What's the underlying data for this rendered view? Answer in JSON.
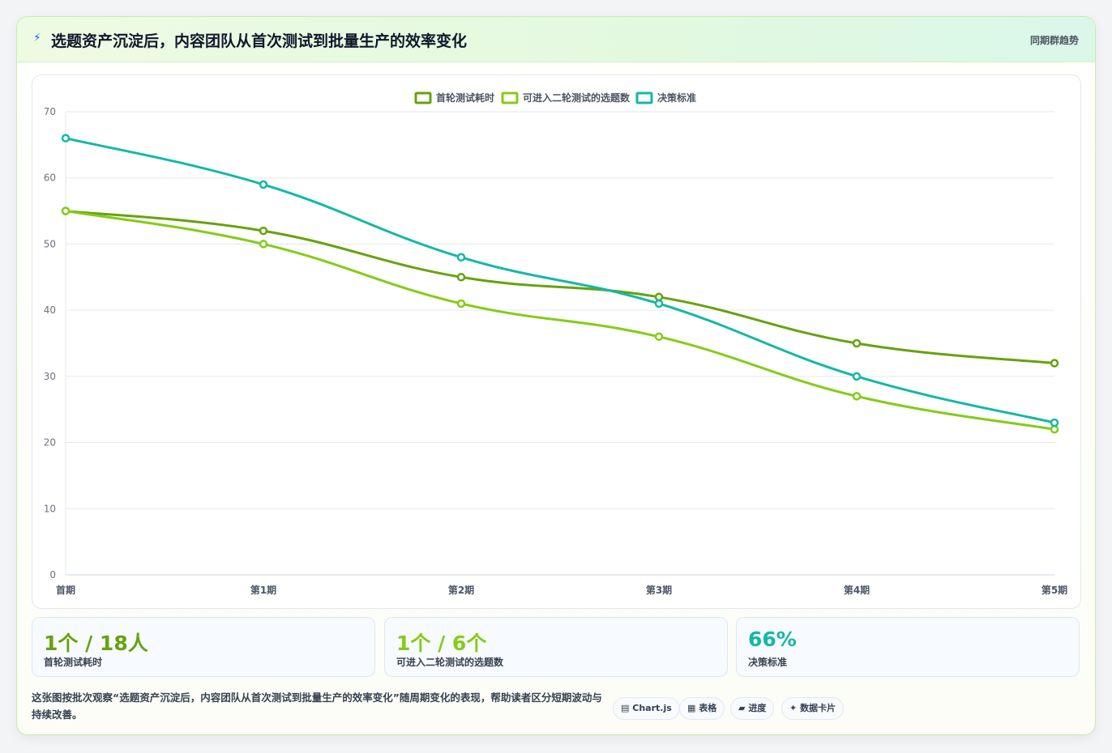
{
  "header": {
    "icon": "lightning-icon",
    "title": "选题资产沉淀后，内容团队从首次测试到批量生产的效率变化",
    "tag": "同期群趋势"
  },
  "colors": {
    "series1": "#65a30d",
    "series2": "#84cc16",
    "series3": "#14b8a6"
  },
  "chart_data": {
    "type": "line",
    "categories": [
      "首期",
      "第1期",
      "第2期",
      "第3期",
      "第4期",
      "第5期"
    ],
    "series": [
      {
        "name": "首轮测试耗时",
        "values": [
          55,
          52,
          45,
          42,
          35,
          32
        ],
        "color": "#65a30d"
      },
      {
        "name": "可进入二轮测试的选题数",
        "values": [
          55,
          50,
          41,
          36,
          27,
          22
        ],
        "color": "#84cc16"
      },
      {
        "name": "决策标准",
        "values": [
          66,
          59,
          48,
          41,
          30,
          23
        ],
        "color": "#14b8a6"
      }
    ],
    "ylim": [
      0,
      70
    ],
    "yticks": [
      0,
      10,
      20,
      30,
      40,
      50,
      60,
      70
    ],
    "grid": true,
    "legend": "top-center"
  },
  "stats": [
    {
      "value": "1个 / 18人",
      "label": "首轮测试耗时",
      "color": "#65a30d"
    },
    {
      "value": "1个 / 6个",
      "label": "可进入二轮测试的选题数",
      "color": "#84cc16"
    },
    {
      "value": "66%",
      "label": "决策标准",
      "color": "#14b8a6"
    }
  ],
  "footer": {
    "description": "这张图按批次观察“选题资产沉淀后，内容团队从首次测试到批量生产的效率变化”随周期变化的表现，帮助读者区分短期波动与持续改善。",
    "chips": [
      {
        "icon": "▤",
        "label": "Chart.js"
      },
      {
        "icon": "▦",
        "label": "表格"
      },
      {
        "icon": "▰",
        "label": "进度"
      },
      {
        "icon": "✦",
        "label": "数据卡片"
      }
    ]
  }
}
